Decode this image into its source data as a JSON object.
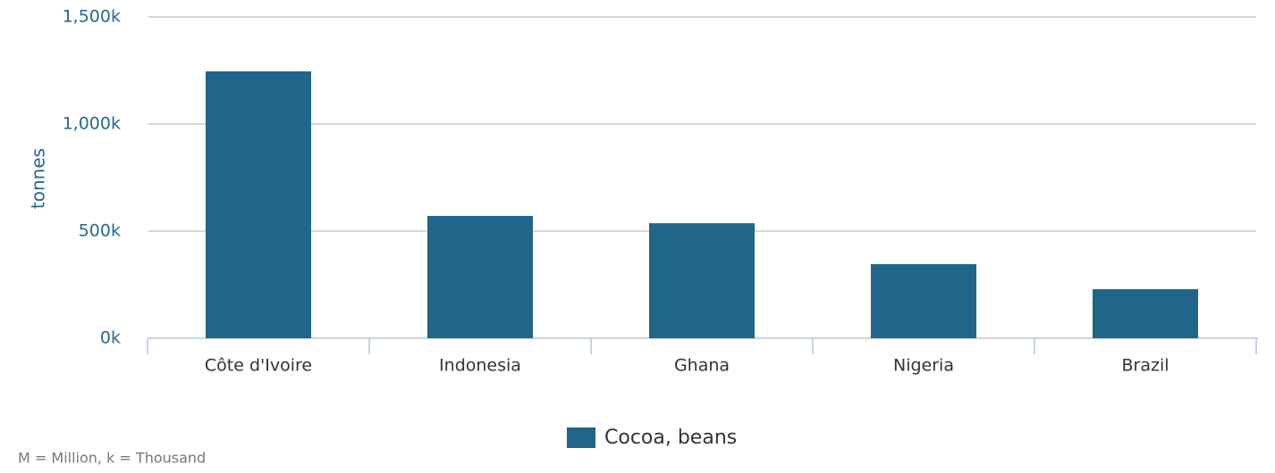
{
  "chart_data": {
    "type": "bar",
    "y_label": "tonnes",
    "categories": [
      "Côte d'Ivoire",
      "Indonesia",
      "Ghana",
      "Nigeria",
      "Brazil"
    ],
    "series": [
      {
        "name": "Cocoa, beans",
        "color": "#1f6688",
        "values": [
          1246000,
          571000,
          537000,
          346000,
          229000
        ]
      }
    ],
    "ylim": [
      0,
      1500000
    ],
    "yticks": [
      {
        "value": 0,
        "label": "0k"
      },
      {
        "value": 500000,
        "label": "500k"
      },
      {
        "value": 1000000,
        "label": "1,000k"
      },
      {
        "value": 1500000,
        "label": "1,500k"
      }
    ],
    "grid": true,
    "legend": "bottom",
    "footnote": "M = Million, k = Thousand"
  }
}
